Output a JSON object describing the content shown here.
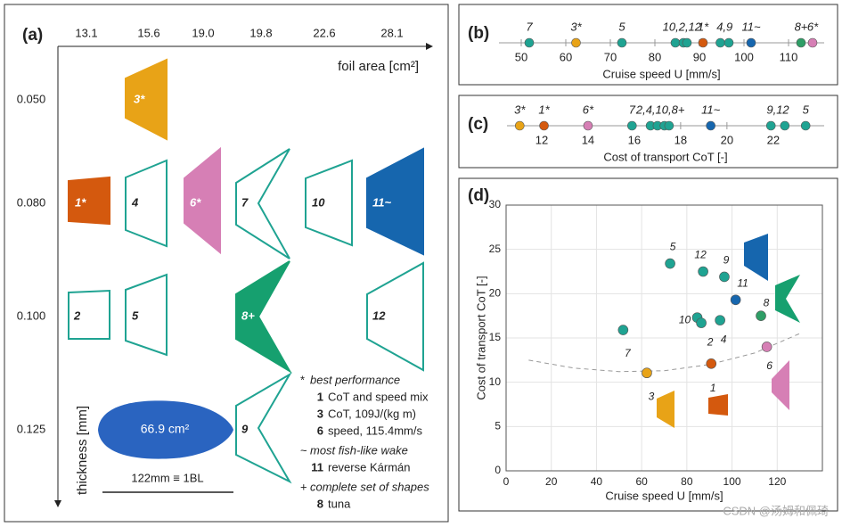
{
  "panel_a": {
    "label": "(a)",
    "columns": [
      "13.1",
      "15.6",
      "19.0",
      "19.8",
      "22.6",
      "28.1"
    ],
    "column_axis": "foil area [cm²]",
    "rows": [
      "0.050",
      "0.080",
      "0.100",
      "0.125"
    ],
    "row_axis": "thickness [mm]",
    "shapes": [
      {
        "label": "3*",
        "fill": "#E8A317"
      },
      {
        "label": "1*",
        "fill": "#D4590E"
      },
      {
        "label": "4",
        "fill": "#ffffff"
      },
      {
        "label": "6*",
        "fill": "#D67FB5"
      },
      {
        "label": "7",
        "fill": "#ffffff"
      },
      {
        "label": "10",
        "fill": "#ffffff"
      },
      {
        "label": "11~",
        "fill": "#1666AE"
      },
      {
        "label": "2",
        "fill": "#ffffff"
      },
      {
        "label": "5",
        "fill": "#ffffff"
      },
      {
        "label": "8+",
        "fill": "#16A06F"
      },
      {
        "label": "12",
        "fill": "#ffffff"
      },
      {
        "label": "9",
        "fill": "#ffffff"
      }
    ],
    "fish": {
      "area": "66.9 cm²",
      "scale": "122mm ≡ 1BL"
    },
    "legend": [
      {
        "marker": "*",
        "heading": "best performance",
        "items": [
          {
            "id": "1",
            "text": "CoT and speed mix"
          },
          {
            "id": "3",
            "text": "CoT, 109J/(kg m)"
          },
          {
            "id": "6",
            "text": "speed, 115.4mm/s"
          }
        ]
      },
      {
        "marker": "~",
        "heading": "most fish-like wake",
        "items": [
          {
            "id": "11",
            "text": "reverse Kármán"
          }
        ]
      },
      {
        "marker": "+",
        "heading": "complete set of shapes",
        "items": [
          {
            "id": "8",
            "text": "tuna"
          }
        ]
      }
    ]
  },
  "chart_data": [
    {
      "type": "strip",
      "title": "(b)",
      "x_label": "Cruise speed U [mm/s]",
      "xlim": [
        45,
        118
      ],
      "xticks": [
        50,
        60,
        70,
        80,
        90,
        100,
        110
      ],
      "groups": [
        {
          "label": "7",
          "color": "#1FA392",
          "values": [
            51.8
          ]
        },
        {
          "label": "3*",
          "color": "#E8A317",
          "values": [
            62.3
          ]
        },
        {
          "label": "5",
          "color": "#1FA392",
          "values": [
            72.6
          ]
        },
        {
          "label": "10,2,12",
          "color": "#1FA392",
          "values": [
            84.6,
            86.4,
            87.2
          ]
        },
        {
          "label": "1*",
          "color": "#D4590E",
          "values": [
            90.8
          ]
        },
        {
          "label": "4,9",
          "color": "#1FA392",
          "values": [
            94.7,
            96.6
          ]
        },
        {
          "label": "11~",
          "color": "#1666AE",
          "values": [
            101.6
          ]
        },
        {
          "label": "8+",
          "color": "#2E9E66",
          "values": [
            112.8
          ]
        },
        {
          "label": "6*",
          "color": "#D67FB5",
          "values": [
            115.4
          ]
        }
      ]
    },
    {
      "type": "strip",
      "title": "(c)",
      "x_label": "Cost of transport CoT [-]",
      "xlim": [
        10.5,
        24.2
      ],
      "xticks": [
        12,
        14,
        16,
        18,
        20,
        22
      ],
      "groups": [
        {
          "label": "3*",
          "color": "#E8A317",
          "values": [
            11.05
          ]
        },
        {
          "label": "1*",
          "color": "#D4590E",
          "values": [
            12.1
          ]
        },
        {
          "label": "6*",
          "color": "#D67FB5",
          "values": [
            14.0
          ]
        },
        {
          "label": "7",
          "color": "#1FA392",
          "values": [
            15.9
          ]
        },
        {
          "label": "2,4,10,8+",
          "color": "#1FA392",
          "values": [
            16.7,
            17.0,
            17.3,
            17.5
          ]
        },
        {
          "label": "11~",
          "color": "#1666AE",
          "values": [
            19.3
          ]
        },
        {
          "label": "9,12",
          "color": "#1FA392",
          "values": [
            21.9,
            22.5
          ]
        },
        {
          "label": "5",
          "color": "#1FA392",
          "values": [
            23.4
          ]
        }
      ]
    },
    {
      "type": "scatter",
      "title": "(d)",
      "x_label": "Cruise speed U [mm/s]",
      "y_label": "Cost of transport CoT [-]",
      "xlim": [
        0,
        140
      ],
      "xticks": [
        0,
        20,
        40,
        60,
        80,
        100,
        120
      ],
      "ylim": [
        0,
        30
      ],
      "yticks": [
        0,
        5,
        10,
        15,
        20,
        25,
        30
      ],
      "grid": true,
      "labels": [
        "7",
        "3",
        "5",
        "10",
        "2",
        "12",
        "1",
        "4",
        "9",
        "11",
        "8",
        "6"
      ],
      "x": [
        51.8,
        62.3,
        72.6,
        84.6,
        86.4,
        87.2,
        90.8,
        94.7,
        96.6,
        101.6,
        112.8,
        115.4
      ],
      "y": [
        15.9,
        11.05,
        23.4,
        17.3,
        16.7,
        22.5,
        12.1,
        17.0,
        21.9,
        19.3,
        17.5,
        14.0
      ],
      "colors": [
        "#1FA392",
        "#E8A317",
        "#1FA392",
        "#1FA392",
        "#1FA392",
        "#1FA392",
        "#D4590E",
        "#1FA392",
        "#1FA392",
        "#1666AE",
        "#2E9E66",
        "#D67FB5"
      ],
      "fit": {
        "x": [
          10,
          30,
          50,
          70,
          90,
          110,
          130
        ],
        "y": [
          12.5,
          11.6,
          11.2,
          11.3,
          12.0,
          13.3,
          15.5
        ]
      }
    }
  ],
  "watermark": "CSDN @汤姆和佩琦"
}
